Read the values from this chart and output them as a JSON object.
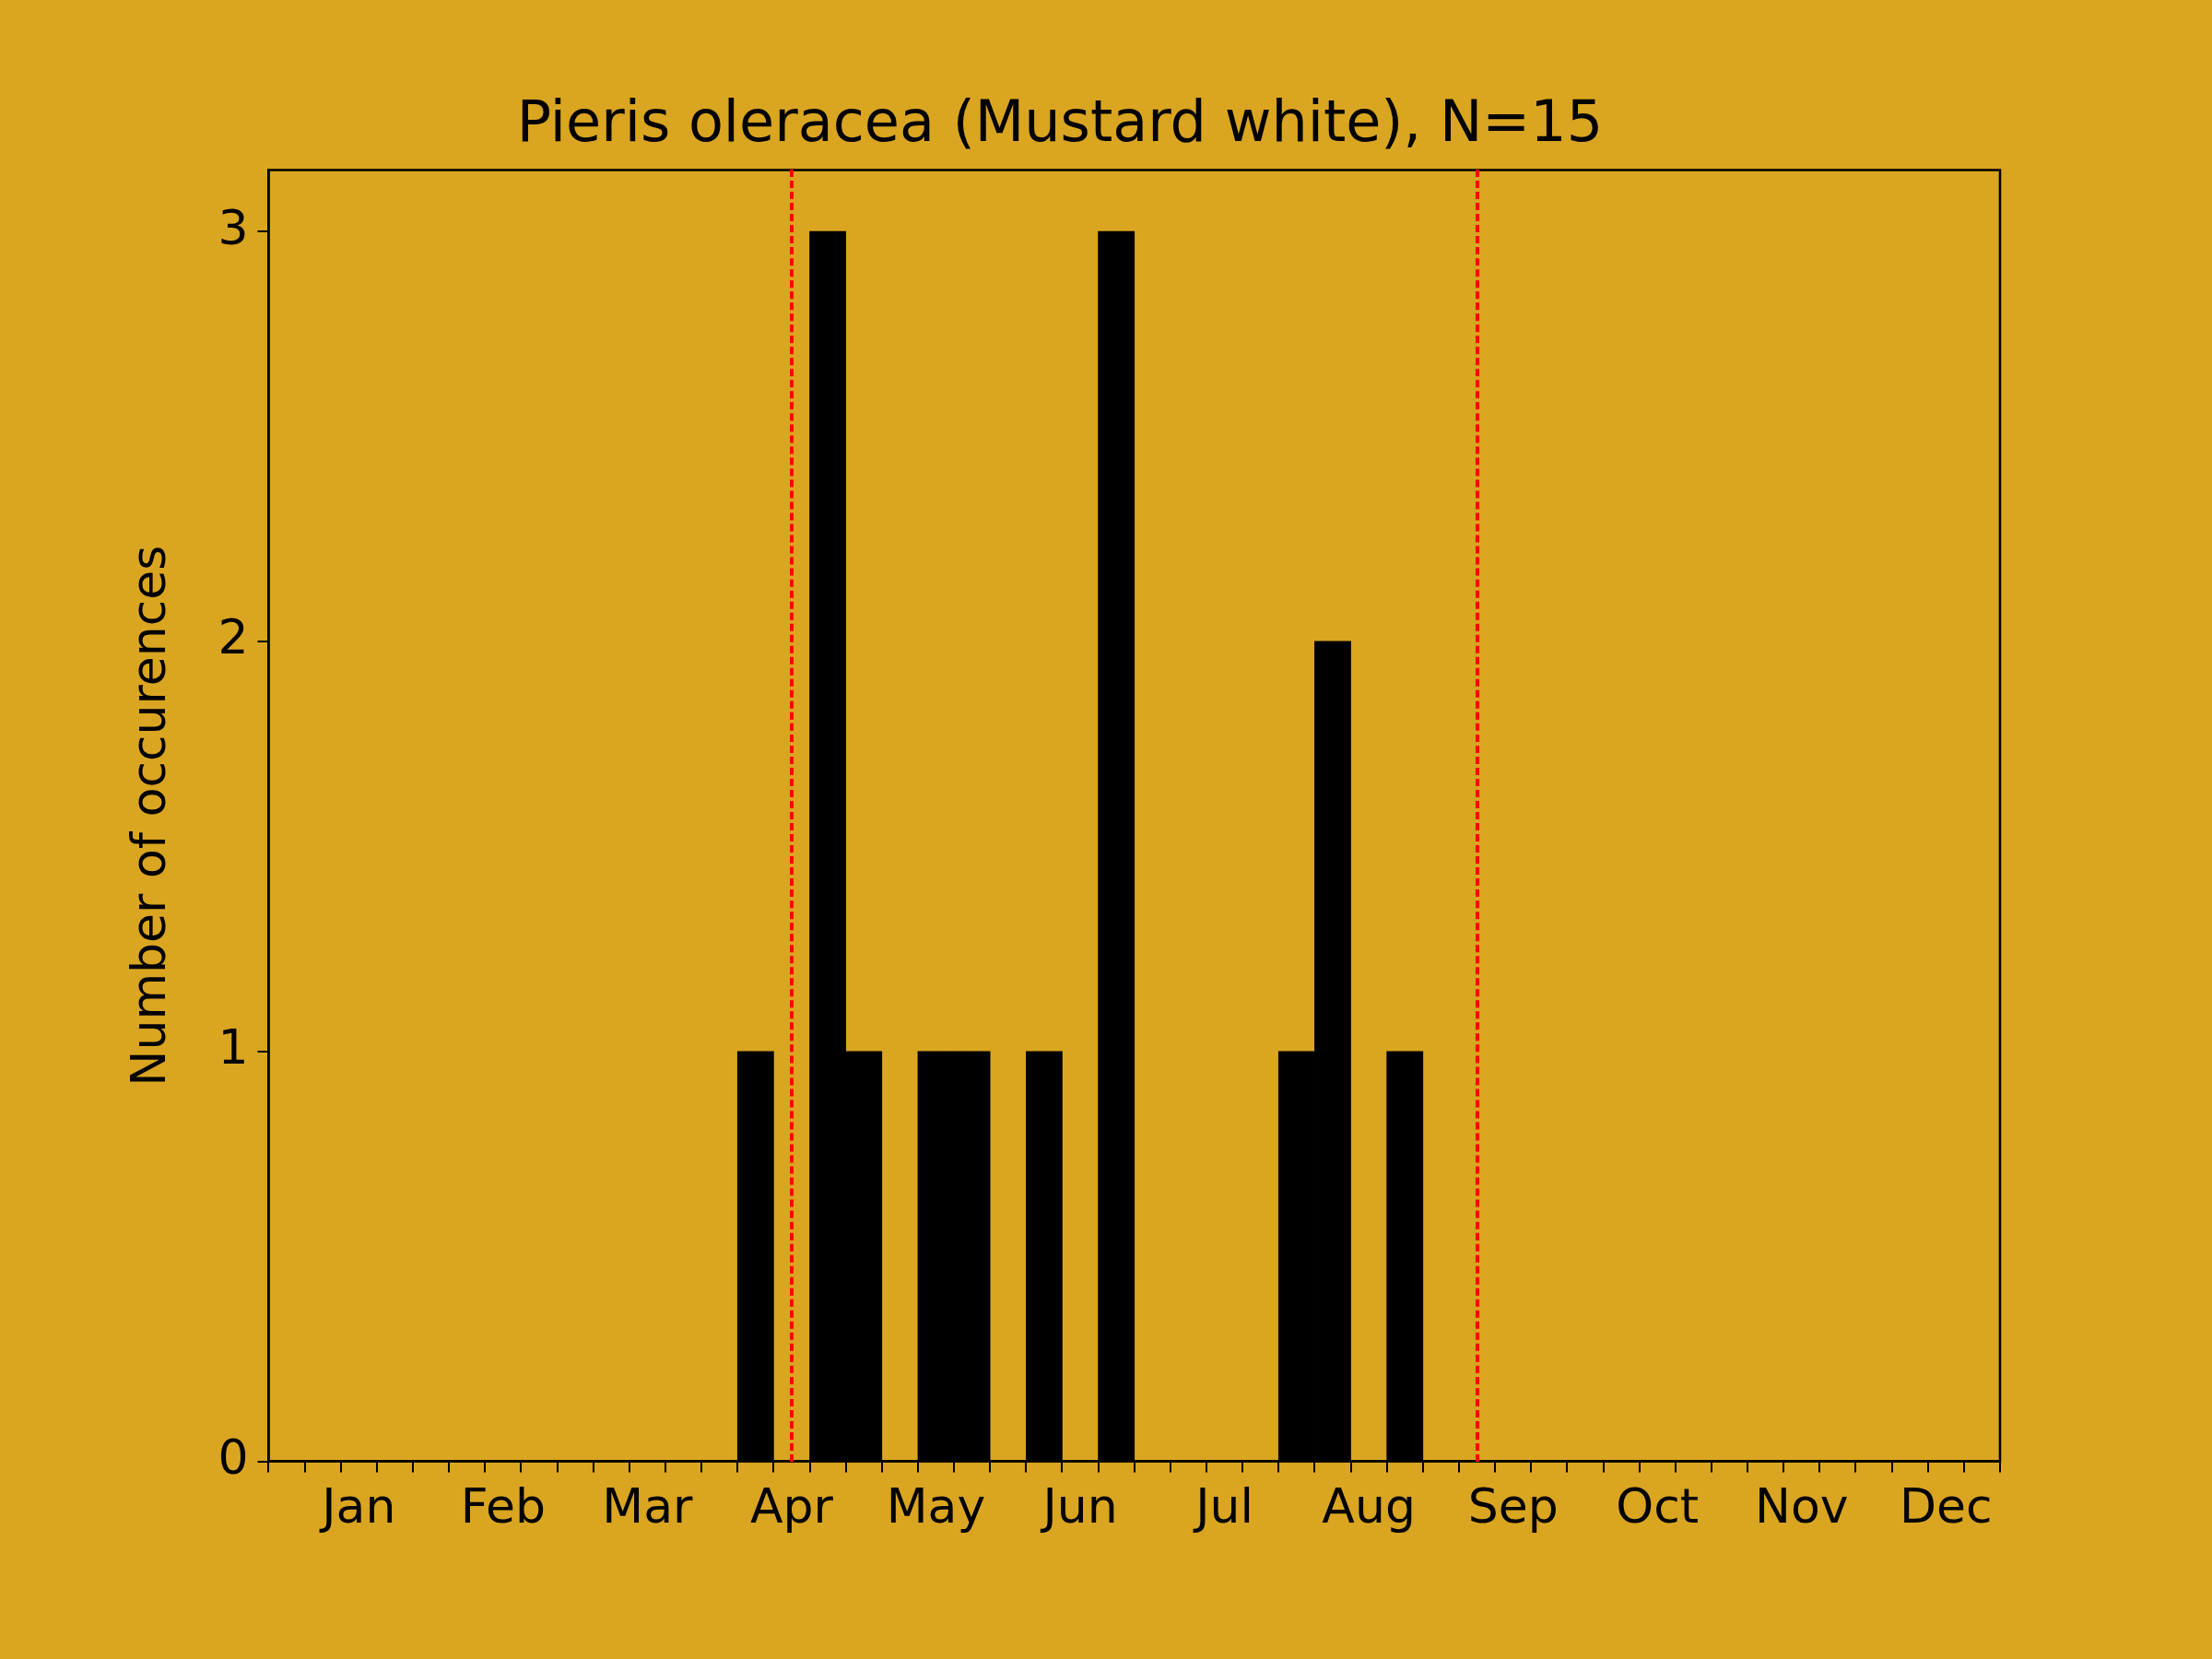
{
  "chart_data": {
    "type": "bar",
    "title": "Pieris oleracea (Mustard white), N=15",
    "ylabel": "Number of occurences",
    "categories": [
      null,
      null,
      "Jan",
      null,
      null,
      null,
      "Feb",
      null,
      null,
      null,
      "Mar",
      null,
      null,
      null,
      "Apr",
      null,
      null,
      null,
      "May",
      null,
      null,
      null,
      "Jun",
      null,
      null,
      null,
      "Jul",
      null,
      null,
      null,
      "Aug",
      null,
      null,
      null,
      "Sep",
      null,
      null,
      null,
      "Oct",
      null,
      null,
      null,
      "Nov",
      null,
      null,
      null,
      "Dec",
      null
    ],
    "values": [
      0,
      0,
      0,
      0,
      0,
      0,
      0,
      0,
      0,
      0,
      0,
      0,
      0,
      1,
      0,
      3,
      1,
      0,
      1,
      1,
      0,
      1,
      0,
      3,
      0,
      0,
      0,
      0,
      1,
      2,
      0,
      1,
      0,
      0,
      0,
      0,
      0,
      0,
      0,
      0,
      0,
      0,
      0,
      0,
      0,
      0,
      0,
      0
    ],
    "color": "#000000",
    "ylim": [
      0,
      3.15
    ],
    "yticks": [
      0,
      1,
      2,
      3
    ]
  }
}
